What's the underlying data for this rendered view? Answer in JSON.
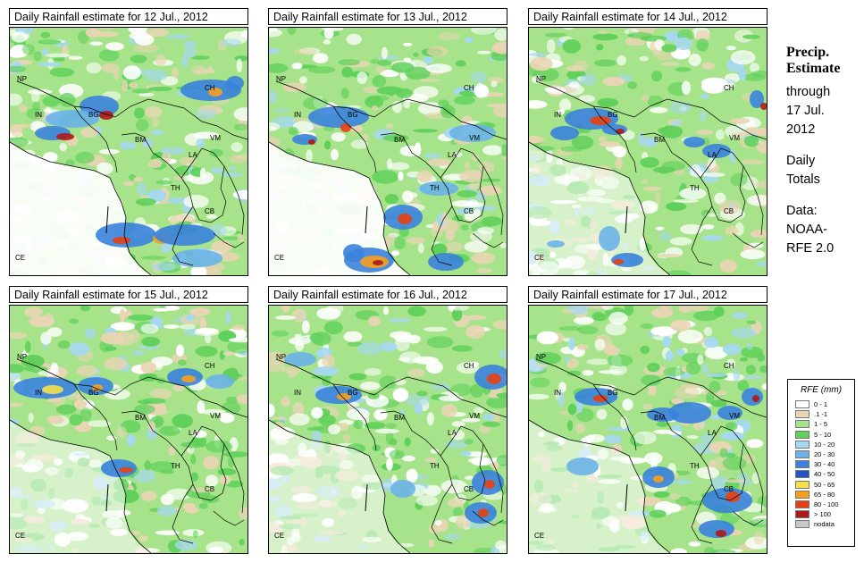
{
  "panels": [
    {
      "title": "Daily Rainfall estimate for  12 Jul., 2012"
    },
    {
      "title": "Daily Rainfall estimate for  13 Jul., 2012"
    },
    {
      "title": "Daily Rainfall estimate for  14 Jul., 2012"
    },
    {
      "title": "Daily Rainfall estimate for  15 Jul., 2012"
    },
    {
      "title": "Daily Rainfall estimate for  16 Jul., 2012"
    },
    {
      "title": "Daily Rainfall estimate for  17 Jul., 2012"
    }
  ],
  "country_labels": [
    "NP",
    "IN",
    "BG",
    "CH",
    "BM",
    "VM",
    "LA",
    "TH",
    "CB",
    "CE"
  ],
  "side": {
    "title_line1": "Precip.",
    "title_line2": "Estimate",
    "through": "through",
    "date_line1": "17 Jul.",
    "date_line2": "2012",
    "totals_line1": "Daily",
    "totals_line2": "Totals",
    "data_line1": "Data:",
    "data_line2": "NOAA-",
    "data_line3": "RFE 2.0"
  },
  "legend": {
    "title": "RFE (mm)",
    "items": [
      {
        "label": "0 - 1",
        "color": "#ffffff"
      },
      {
        "label": ".1 -1",
        "color": "#e9d5b4"
      },
      {
        "label": "1 - 5",
        "color": "#a6e38a"
      },
      {
        "label": "5 - 10",
        "color": "#5fd05a"
      },
      {
        "label": "10 - 20",
        "color": "#a6d8f0"
      },
      {
        "label": "20 - 30",
        "color": "#6cb2e8"
      },
      {
        "label": "30 - 40",
        "color": "#3a82dc"
      },
      {
        "label": "40 - 50",
        "color": "#2254c8"
      },
      {
        "label": "50 - 65",
        "color": "#f5e04a"
      },
      {
        "label": "65 - 80",
        "color": "#f5a020"
      },
      {
        "label": "80 - 100",
        "color": "#e84010"
      },
      {
        "label": "> 100",
        "color": "#b01818"
      },
      {
        "label": "nodata",
        "color": "#c8c8c8"
      }
    ]
  }
}
